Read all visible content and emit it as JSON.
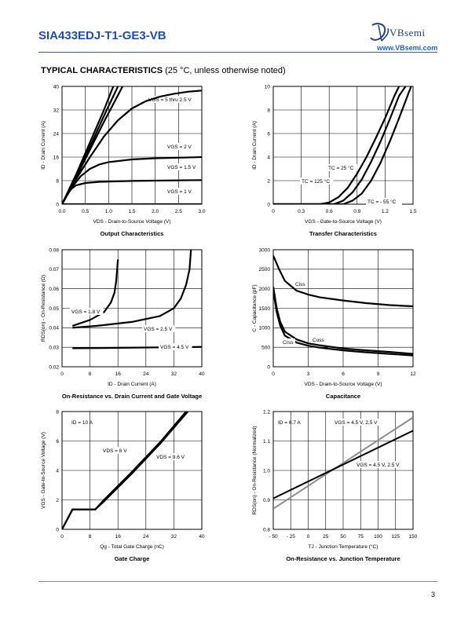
{
  "header": {
    "part_number": "SIA433EDJ-T1-GE3-VB",
    "brand": "VBsemi",
    "url": "www.VBsemi.com"
  },
  "section": {
    "title": "TYPICAL CHARACTERISTICS",
    "subtitle": "(25 °C, unless otherwise noted)"
  },
  "footer": {
    "page": "3"
  },
  "chart_data": [
    {
      "type": "line",
      "title": "Output Characteristics",
      "xlabel": "VDS - Drain-to-Source Voltage (V)",
      "ylabel": "ID - Drain Current (A)",
      "xlim": [
        0,
        3.0
      ],
      "ylim": [
        0,
        40
      ],
      "xticks": [
        "0.0",
        "0.5",
        "1.0",
        "1.5",
        "2.0",
        "2.5",
        "3.0"
      ],
      "yticks": [
        "0",
        "8",
        "16",
        "24",
        "32",
        "40"
      ],
      "grid": true,
      "series": [
        {
          "name": "VGS = 5 thru 2.5 V",
          "x": [
            0,
            0.3,
            0.6,
            0.9,
            1.1
          ],
          "y": [
            0,
            10,
            21,
            32,
            40
          ]
        },
        {
          "name": "",
          "x": [
            0,
            0.3,
            0.6,
            0.9,
            1.2
          ],
          "y": [
            0,
            9.5,
            19.5,
            30,
            40
          ]
        },
        {
          "name": "",
          "x": [
            0,
            0.3,
            0.6,
            0.9,
            1.2,
            1.3
          ],
          "y": [
            0,
            9,
            18.5,
            28,
            37,
            40
          ]
        },
        {
          "name": "",
          "x": [
            0,
            0.3,
            0.6,
            0.9,
            1.2,
            1.5,
            1.8,
            2.1,
            2.4,
            2.7,
            3.0
          ],
          "y": [
            0,
            8.5,
            16,
            23,
            28.5,
            32.5,
            35,
            36.5,
            37.5,
            38.2,
            38.6
          ]
        },
        {
          "name": "VGS = 2 V",
          "x": [
            0,
            0.2,
            0.4,
            0.6,
            0.8,
            1.0,
            1.5,
            2.0,
            2.5,
            3.0
          ],
          "y": [
            0,
            5.5,
            9.5,
            12,
            13.5,
            14.3,
            15.2,
            15.6,
            15.8,
            16
          ]
        },
        {
          "name": "VGS = 1.5 V",
          "x": [
            0,
            0.1,
            0.2,
            0.3,
            0.5,
            0.8,
            1.5,
            2.0,
            3.0
          ],
          "y": [
            0,
            3,
            5.2,
            6.4,
            7.2,
            7.6,
            7.9,
            8,
            8.2
          ]
        },
        {
          "name": "VGS = 1 V",
          "x": [
            0,
            3.0
          ],
          "y": [
            0,
            0
          ]
        }
      ]
    },
    {
      "type": "line",
      "title": "Transfer Characteristics",
      "xlabel": "VGS - Gate-to-Source Voltage (V)",
      "ylabel": "ID - Drain Current (A)",
      "xlim": [
        0,
        1.5
      ],
      "ylim": [
        0,
        10
      ],
      "xticks": [
        "0",
        "0.3",
        "0.6",
        "0.9",
        "1.2",
        "1.5"
      ],
      "yticks": [
        "0",
        "2",
        "4",
        "6",
        "8",
        "10"
      ],
      "grid": true,
      "series": [
        {
          "name": "TC = 125 °C",
          "x": [
            0,
            0.5,
            0.6,
            0.7,
            0.8,
            0.9,
            1.0,
            1.1,
            1.2,
            1.3,
            1.35
          ],
          "y": [
            0,
            0,
            0.15,
            0.6,
            1.4,
            2.6,
            4.0,
            5.6,
            7.3,
            9.2,
            10
          ]
        },
        {
          "name": "TC = 25 °C",
          "x": [
            0,
            0.65,
            0.75,
            0.85,
            0.95,
            1.05,
            1.15,
            1.25,
            1.35,
            1.42
          ],
          "y": [
            0,
            0,
            0.3,
            1.0,
            2.1,
            3.6,
            5.3,
            7.2,
            9.2,
            10
          ]
        },
        {
          "name": "TC = - 55 °C",
          "x": [
            0,
            0.75,
            0.85,
            0.95,
            1.05,
            1.15,
            1.25,
            1.35,
            1.45,
            1.48
          ],
          "y": [
            0,
            0,
            0.3,
            0.9,
            2.0,
            3.5,
            5.3,
            7.3,
            9.4,
            10
          ]
        }
      ]
    },
    {
      "type": "line",
      "title": "On-Resistance vs. Drain Current and Gate Voltage",
      "xlabel": "ID - Drain Current (A)",
      "ylabel": "RDS(on) - On-Resistance (Ω)",
      "xlim": [
        0,
        40
      ],
      "ylim": [
        0.02,
        0.08
      ],
      "xticks": [
        "0",
        "8",
        "16",
        "24",
        "32",
        "40"
      ],
      "yticks": [
        "0.02",
        "0.03",
        "0.04",
        "0.05",
        "0.06",
        "0.07",
        "0.08"
      ],
      "grid": true,
      "series": [
        {
          "name": "VGS = 1.8 V",
          "x": [
            3,
            8,
            12,
            14,
            15,
            15.5,
            16
          ],
          "y": [
            0.041,
            0.044,
            0.048,
            0.053,
            0.058,
            0.064,
            0.075
          ]
        },
        {
          "name": "VGS = 2.5 V",
          "x": [
            3,
            10,
            20,
            28,
            32,
            34,
            35.5,
            36.5,
            37
          ],
          "y": [
            0.04,
            0.041,
            0.043,
            0.046,
            0.05,
            0.055,
            0.062,
            0.07,
            0.083
          ]
        },
        {
          "name": "VGS = 4.5 V",
          "x": [
            3,
            16,
            30,
            40
          ],
          "y": [
            0.0295,
            0.0297,
            0.03,
            0.0302
          ]
        }
      ]
    },
    {
      "type": "line",
      "title": "Capacitance",
      "xlabel": "VDS - Drain-to-Source Voltage (V)",
      "ylabel": "C - Capacitance (pF)",
      "xlim": [
        0,
        12
      ],
      "ylim": [
        0,
        3000
      ],
      "xticks": [
        "0",
        "3",
        "6",
        "9",
        "12"
      ],
      "yticks": [
        "0",
        "500",
        "1000",
        "1500",
        "2000",
        "2500",
        "3000"
      ],
      "grid": true,
      "series": [
        {
          "name": "Ciss",
          "x": [
            0,
            0.5,
            1,
            2,
            3,
            4,
            6,
            8,
            10,
            12
          ],
          "y": [
            2850,
            2500,
            2200,
            1950,
            1850,
            1780,
            1700,
            1630,
            1580,
            1550
          ]
        },
        {
          "name": "Coss",
          "x": [
            0,
            0.3,
            0.6,
            1,
            2,
            3,
            4,
            6,
            8,
            10,
            12
          ],
          "y": [
            2050,
            1500,
            1150,
            900,
            700,
            600,
            550,
            470,
            420,
            380,
            330
          ]
        },
        {
          "name": "Crss",
          "x": [
            0,
            0.3,
            0.6,
            1,
            2,
            3,
            4,
            6,
            8,
            10,
            12
          ],
          "y": [
            1950,
            1400,
            1050,
            800,
            620,
            540,
            490,
            420,
            370,
            330,
            290
          ]
        }
      ]
    },
    {
      "type": "line",
      "title": "Gate Charge",
      "xlabel": "Qg - Total Gate Charge (nC)",
      "ylabel": "VGS - Gate-to-Source Voltage (V)",
      "xlim": [
        0,
        40
      ],
      "ylim": [
        0,
        8
      ],
      "xticks": [
        "0",
        "8",
        "16",
        "24",
        "32",
        "40"
      ],
      "yticks": [
        "0",
        "2",
        "4",
        "6",
        "8"
      ],
      "grid": true,
      "annotation": "ID = 10 A",
      "series": [
        {
          "name": "VDS = 6 V",
          "x": [
            0,
            3,
            9.5,
            12,
            20,
            28,
            35.5
          ],
          "y": [
            0,
            1.35,
            1.35,
            2.0,
            3.9,
            5.9,
            8.0
          ]
        },
        {
          "name": "VDS = 9.6 V",
          "x": [
            0,
            3,
            9.5,
            12,
            20,
            28,
            36
          ],
          "y": [
            0,
            1.35,
            1.35,
            1.9,
            3.8,
            5.8,
            8.0
          ]
        }
      ]
    },
    {
      "type": "line",
      "title": "On-Resistance vs. Junction Temperature",
      "xlabel": "TJ - Junction Temperature (°C)",
      "ylabel": "RDS(on) - On-Resistance (Normalized)",
      "xlim": [
        -50,
        150
      ],
      "ylim": [
        0.8,
        1.2
      ],
      "xticks": [
        "- 50",
        "- 25",
        "0",
        "25",
        "50",
        "75",
        "100",
        "125",
        "150"
      ],
      "yticks": [
        "0.8",
        "0.9",
        "1.0",
        "1.1",
        "1.2"
      ],
      "grid": true,
      "annotation": "ID = 6.7 A",
      "series": [
        {
          "name": "VGS = 4.5 V, 2.5 V",
          "color": "#8c8c8c",
          "x": [
            -50,
            150
          ],
          "y": [
            0.87,
            1.18
          ]
        },
        {
          "name": "VGS = 4.5 V, 2.5 V",
          "color": "#000000",
          "x": [
            -50,
            150
          ],
          "y": [
            0.905,
            1.135
          ]
        }
      ]
    }
  ]
}
